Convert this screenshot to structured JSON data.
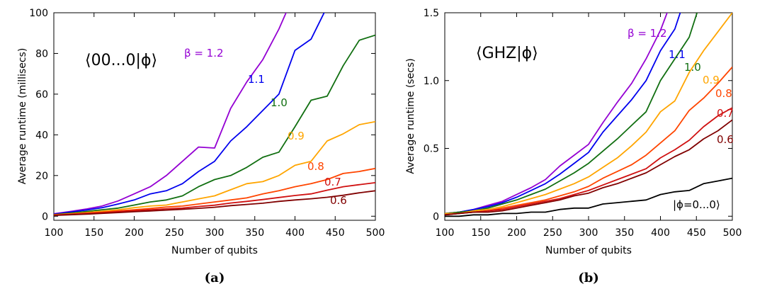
{
  "colors": {
    "1.2": "#9400d3",
    "1.1": "#0000ee",
    "1.0": "#116f11",
    "0.9": "#ffa500",
    "0.8": "#ff4500",
    "0.7": "#d01010",
    "0.6": "#800000",
    "zero": "#000000"
  },
  "chart_data": [
    {
      "type": "line",
      "subfigure": "(a)",
      "annotation": "⟨00...0|ϕ⟩",
      "xlabel": "Number of qubits",
      "ylabel": "Average runtime (millisecs)",
      "xlim": [
        100,
        500
      ],
      "ylim": [
        0,
        100
      ],
      "xticks": [
        "100",
        "150",
        "200",
        "250",
        "300",
        "350",
        "400",
        "450",
        "500"
      ],
      "yticks": [
        "0",
        "20",
        "40",
        "60",
        "80",
        "100"
      ],
      "grid": false,
      "x": [
        100,
        120,
        140,
        160,
        180,
        200,
        220,
        240,
        260,
        280,
        300,
        320,
        340,
        360,
        380,
        400,
        420,
        440,
        460,
        480,
        500
      ],
      "series": [
        {
          "label": "β = 1.2",
          "color_key": "1.2",
          "values": [
            1.2,
            2.3,
            3.5,
            5,
            7.5,
            11,
            14.5,
            20,
            27,
            34,
            33.5,
            53,
            66,
            77,
            92,
            110,
            null,
            null,
            null,
            null,
            null
          ]
        },
        {
          "label": "1.1",
          "color_key": "1.1",
          "values": [
            1.0,
            2.0,
            3.0,
            4.2,
            6,
            8,
            11,
            12.5,
            16,
            22,
            27,
            37,
            44,
            52,
            60,
            81.5,
            87,
            103,
            null,
            null,
            null
          ]
        },
        {
          "label": "1.0",
          "color_key": "1.0",
          "values": [
            0.8,
            1.5,
            2.3,
            3.2,
            4,
            5.5,
            7,
            8,
            10,
            14.5,
            18,
            20,
            24,
            29,
            31.5,
            44,
            57,
            59,
            74,
            86.5,
            89
          ]
        },
        {
          "label": "0.9",
          "color_key": "0.9",
          "values": [
            0.7,
            1.2,
            1.8,
            2.5,
            3.2,
            4.2,
            5,
            5.5,
            7,
            8.5,
            10,
            13,
            16,
            17,
            20,
            25,
            27,
            37,
            40.5,
            45,
            46.5
          ]
        },
        {
          "label": "0.8",
          "color_key": "0.8",
          "values": [
            0.6,
            1.0,
            1.5,
            2.0,
            2.6,
            3.2,
            3.8,
            4.5,
            5,
            6,
            7,
            8,
            9,
            11,
            12.5,
            14.5,
            16,
            18,
            21,
            22,
            23.5
          ]
        },
        {
          "label": "0.7",
          "color_key": "0.7",
          "values": [
            0.5,
            0.9,
            1.3,
            1.7,
            2.2,
            2.7,
            3.2,
            3.6,
            4,
            4.8,
            5.4,
            6.5,
            7.3,
            8.2,
            9.2,
            10.2,
            11,
            12.8,
            14.5,
            15.5,
            16.5
          ]
        },
        {
          "label": "0.6",
          "color_key": "0.6",
          "values": [
            0.4,
            0.7,
            1.0,
            1.4,
            1.8,
            2.2,
            2.6,
            3,
            3.4,
            3.9,
            4.4,
            5.2,
            5.8,
            6.4,
            7.3,
            8,
            8.6,
            9.3,
            10.3,
            11.5,
            12.5
          ]
        }
      ]
    },
    {
      "type": "line",
      "subfigure": "(b)",
      "annotation": "⟨GHZ|ϕ⟩",
      "xlabel": "Number of qubits",
      "ylabel": "Average runtime (secs)",
      "xlim": [
        100,
        500
      ],
      "ylim": [
        0,
        1.5
      ],
      "xticks": [
        "100",
        "150",
        "200",
        "250",
        "300",
        "350",
        "400",
        "450",
        "500"
      ],
      "yticks": [
        "0",
        "0.5",
        "1.0",
        "1.5"
      ],
      "grid": false,
      "x": [
        100,
        120,
        140,
        160,
        180,
        200,
        220,
        240,
        260,
        280,
        300,
        320,
        340,
        360,
        380,
        400,
        420,
        440,
        460,
        480,
        500
      ],
      "series": [
        {
          "label": "β = 1.2",
          "color_key": "1.2",
          "values": [
            0.02,
            0.03,
            0.05,
            0.08,
            0.11,
            0.16,
            0.21,
            0.27,
            0.37,
            0.45,
            0.53,
            0.69,
            0.84,
            0.98,
            1.16,
            1.37,
            1.65,
            null,
            null,
            null,
            null
          ]
        },
        {
          "label": "1.1",
          "color_key": "1.1",
          "values": [
            0.02,
            0.03,
            0.05,
            0.07,
            0.1,
            0.14,
            0.19,
            0.24,
            0.31,
            0.39,
            0.47,
            0.62,
            0.74,
            0.86,
            1.0,
            1.22,
            1.38,
            1.7,
            null,
            null,
            null
          ]
        },
        {
          "label": "1.0",
          "color_key": "1.0",
          "values": [
            0.02,
            0.03,
            0.04,
            0.06,
            0.09,
            0.12,
            0.16,
            0.2,
            0.26,
            0.32,
            0.39,
            0.48,
            0.57,
            0.67,
            0.77,
            1.0,
            1.16,
            1.32,
            1.65,
            null,
            null
          ]
        },
        {
          "label": "0.9",
          "color_key": "0.9",
          "values": [
            0.02,
            0.02,
            0.04,
            0.05,
            0.07,
            0.1,
            0.13,
            0.16,
            0.2,
            0.24,
            0.29,
            0.36,
            0.43,
            0.52,
            0.62,
            0.77,
            0.85,
            1.06,
            1.22,
            1.36,
            1.5
          ]
        },
        {
          "label": "0.8",
          "color_key": "0.8",
          "values": [
            0.01,
            0.02,
            0.03,
            0.04,
            0.06,
            0.08,
            0.1,
            0.12,
            0.15,
            0.18,
            0.22,
            0.28,
            0.33,
            0.38,
            0.45,
            0.54,
            0.63,
            0.78,
            0.87,
            0.98,
            1.1
          ]
        },
        {
          "label": "0.7",
          "color_key": "0.7",
          "values": [
            0.01,
            0.02,
            0.03,
            0.04,
            0.05,
            0.07,
            0.09,
            0.11,
            0.13,
            0.16,
            0.19,
            0.23,
            0.27,
            0.31,
            0.35,
            0.43,
            0.49,
            0.56,
            0.66,
            0.74,
            0.8
          ]
        },
        {
          "label": "0.6",
          "color_key": "0.6",
          "values": [
            0.01,
            0.02,
            0.03,
            0.03,
            0.04,
            0.06,
            0.08,
            0.1,
            0.12,
            0.15,
            0.17,
            0.21,
            0.24,
            0.28,
            0.32,
            0.38,
            0.44,
            0.49,
            0.57,
            0.63,
            0.71
          ]
        },
        {
          "label": "|ϕ=0...0⟩",
          "color_key": "zero",
          "values": [
            0.0,
            0.0,
            0.01,
            0.01,
            0.02,
            0.02,
            0.03,
            0.03,
            0.05,
            0.06,
            0.06,
            0.09,
            0.1,
            0.11,
            0.12,
            0.16,
            0.18,
            0.19,
            0.24,
            0.26,
            0.28
          ]
        }
      ]
    }
  ]
}
